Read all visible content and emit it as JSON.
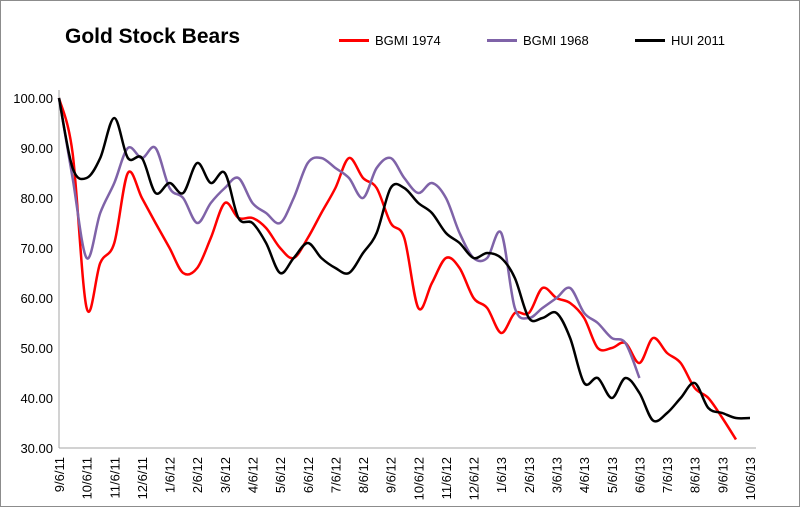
{
  "chart_data": {
    "type": "line",
    "title": "Gold Stock Bears",
    "xlabel": "",
    "ylabel": "",
    "ylim": [
      30,
      100
    ],
    "yticks": [
      "30.00",
      "40.00",
      "50.00",
      "60.00",
      "70.00",
      "80.00",
      "90.00",
      "100.00"
    ],
    "xticks": [
      "9/6/11",
      "10/6/11",
      "11/6/11",
      "12/6/11",
      "1/6/12",
      "2/6/12",
      "3/6/12",
      "4/6/12",
      "5/6/12",
      "6/6/12",
      "7/6/12",
      "8/6/12",
      "9/6/12",
      "10/6/12",
      "11/6/12",
      "12/6/12",
      "1/6/13",
      "2/6/13",
      "3/6/13",
      "4/6/13",
      "5/6/13",
      "6/6/13",
      "7/6/13",
      "8/6/13",
      "9/6/13",
      "10/6/13"
    ],
    "grid": false,
    "legend_position": "top",
    "x": [
      "2011-09-06",
      "2011-09-21",
      "2011-10-06",
      "2011-10-21",
      "2011-11-06",
      "2011-11-21",
      "2011-12-06",
      "2011-12-21",
      "2012-01-06",
      "2012-01-21",
      "2012-02-06",
      "2012-02-21",
      "2012-03-06",
      "2012-03-21",
      "2012-04-06",
      "2012-04-21",
      "2012-05-06",
      "2012-05-21",
      "2012-06-06",
      "2012-06-21",
      "2012-07-06",
      "2012-07-21",
      "2012-08-06",
      "2012-08-21",
      "2012-09-06",
      "2012-09-21",
      "2012-10-06",
      "2012-10-21",
      "2012-11-06",
      "2012-11-21",
      "2012-12-06",
      "2012-12-21",
      "2013-01-06",
      "2013-01-21",
      "2013-02-06",
      "2013-02-21",
      "2013-03-06",
      "2013-03-21",
      "2013-04-06",
      "2013-04-21",
      "2013-05-06",
      "2013-05-21",
      "2013-06-06",
      "2013-06-21",
      "2013-07-06",
      "2013-07-21",
      "2013-08-06",
      "2013-08-21",
      "2013-09-06",
      "2013-09-21",
      "2013-10-06"
    ],
    "series": [
      {
        "name": "BGMI 1974",
        "color": "#ff0000",
        "values": [
          100,
          89,
          58,
          67,
          71,
          85,
          80,
          75,
          70,
          65,
          66,
          72,
          79,
          76,
          76,
          74,
          70,
          68,
          72,
          77,
          82,
          88,
          84,
          82,
          75,
          72,
          58,
          63,
          68,
          66,
          60,
          58,
          53,
          57,
          57,
          62,
          60,
          59,
          56,
          50,
          50,
          51,
          47,
          52,
          49,
          47,
          42,
          40,
          36,
          31.7,
          null
        ]
      },
      {
        "name": "BGMI 1968",
        "color": "#7f63a8",
        "values": [
          100,
          84,
          68,
          77,
          83,
          90,
          88,
          90,
          82,
          80,
          75,
          79,
          82,
          84,
          79,
          77,
          75,
          80,
          87,
          88,
          86,
          84,
          80,
          86,
          88,
          84,
          81,
          83,
          80,
          73,
          68,
          68,
          73,
          58,
          56,
          58,
          60,
          62,
          57,
          55,
          52,
          51,
          44,
          null,
          null,
          null,
          null,
          null,
          null,
          null,
          null
        ]
      },
      {
        "name": "HUI 2011",
        "color": "#000000",
        "values": [
          100,
          86,
          84,
          88,
          96,
          88,
          88,
          81,
          83,
          81,
          87,
          83,
          85,
          76,
          75,
          71,
          65,
          68,
          71,
          68,
          66,
          65,
          69,
          73,
          82,
          82,
          79,
          77,
          73,
          71,
          68,
          69,
          68,
          64,
          56,
          56,
          57,
          52,
          43,
          44,
          40,
          44,
          41,
          35.5,
          37,
          40,
          43,
          38,
          37,
          36,
          36
        ]
      }
    ]
  }
}
